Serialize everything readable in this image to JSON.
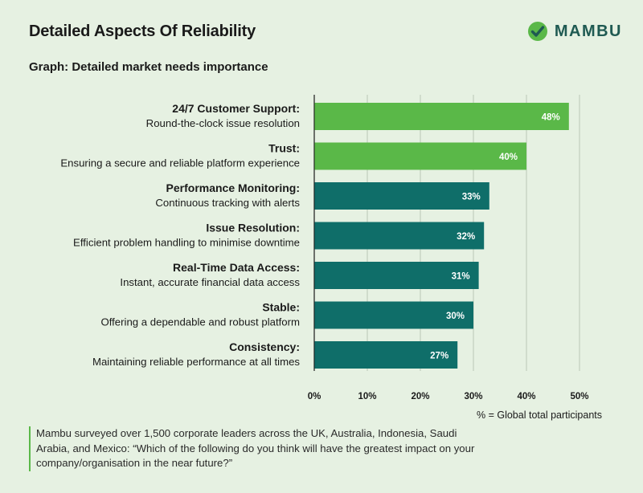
{
  "header": {
    "title": "Detailed Aspects Of Reliability",
    "subtitle": "Graph: Detailed market needs importance",
    "logo_text": "MAMBU",
    "logo_icon": "mambu-check-icon",
    "brand_color": "#1f5a52"
  },
  "chart_data": {
    "type": "bar",
    "orientation": "horizontal",
    "title": "Graph: Detailed market needs importance",
    "categories": [
      {
        "label": "24/7 Customer Support:",
        "description": "Round-the-clock issue resolution"
      },
      {
        "label": "Trust:",
        "description": "Ensuring a secure and reliable platform experience"
      },
      {
        "label": "Performance Monitoring:",
        "description": "Continuous tracking with alerts"
      },
      {
        "label": "Issue Resolution:",
        "description": "Efficient problem handling to minimise downtime"
      },
      {
        "label": "Real-Time Data Access:",
        "description": "Instant, accurate financial data access"
      },
      {
        "label": "Stable:",
        "description": "Offering a dependable and robust platform"
      },
      {
        "label": "Consistency:",
        "description": "Maintaining reliable performance at all times"
      }
    ],
    "values": [
      48,
      40,
      33,
      32,
      31,
      30,
      27
    ],
    "value_labels": [
      "48%",
      "40%",
      "33%",
      "32%",
      "31%",
      "30%",
      "27%"
    ],
    "bar_colors": [
      "#5ab848",
      "#5ab848",
      "#0f6e69",
      "#0f6e69",
      "#0f6e69",
      "#0f6e69",
      "#0f6e69"
    ],
    "xlim": [
      0,
      50
    ],
    "x_ticks": [
      0,
      10,
      20,
      30,
      40,
      50
    ],
    "x_tick_labels": [
      "0%",
      "10%",
      "20%",
      "30%",
      "40%",
      "50%"
    ],
    "grid": true,
    "xlabel": "% = Global total participants"
  },
  "footnote": {
    "text": "Mambu surveyed over 1,500 corporate leaders across the UK, Australia, Indonesia, Saudi Arabia, and Mexico: “Which of the following  do you think will have the greatest impact on your company/organisation in the near future?”"
  }
}
